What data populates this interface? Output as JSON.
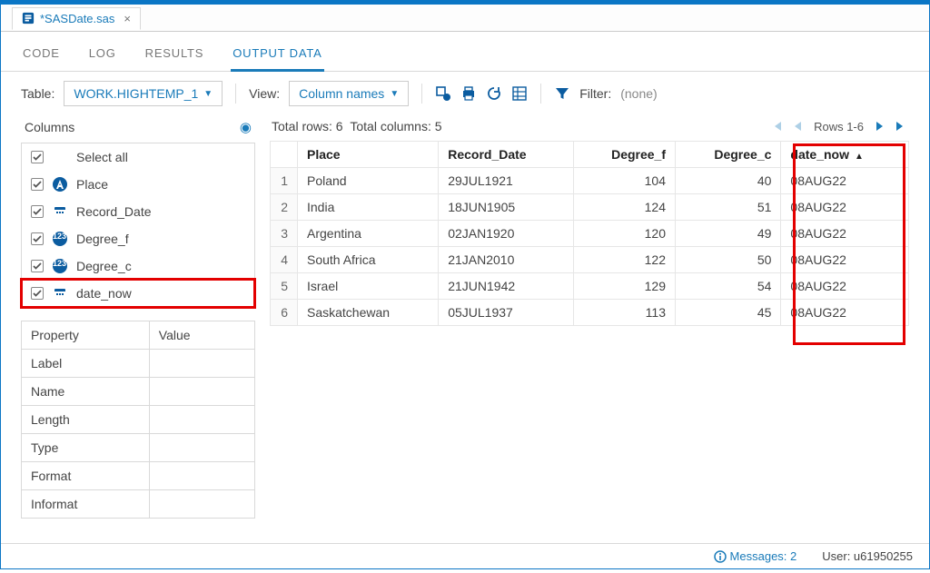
{
  "file_tab": {
    "name": "*SASDate.sas",
    "icon": "sas-program-icon"
  },
  "nav_tabs": [
    {
      "label": "CODE",
      "active": false
    },
    {
      "label": "LOG",
      "active": false
    },
    {
      "label": "RESULTS",
      "active": false
    },
    {
      "label": "OUTPUT DATA",
      "active": true
    }
  ],
  "toolbar": {
    "table_label": "Table:",
    "table_value": "WORK.HIGHTEMP_1",
    "view_label": "View:",
    "view_value": "Column names",
    "filter_label": "Filter:",
    "filter_value": "(none)"
  },
  "columns_panel": {
    "title": "Columns",
    "items": [
      {
        "label": "Select all",
        "icon": "none",
        "checked": true,
        "highlight": false
      },
      {
        "label": "Place",
        "icon": "char",
        "checked": true,
        "highlight": false
      },
      {
        "label": "Record_Date",
        "icon": "date",
        "checked": true,
        "highlight": false
      },
      {
        "label": "Degree_f",
        "icon": "num",
        "checked": true,
        "highlight": false
      },
      {
        "label": "Degree_c",
        "icon": "num",
        "checked": true,
        "highlight": false
      },
      {
        "label": "date_now",
        "icon": "date",
        "checked": true,
        "highlight": true
      }
    ]
  },
  "properties": {
    "headers": [
      "Property",
      "Value"
    ],
    "rows": [
      "Label",
      "Name",
      "Length",
      "Type",
      "Format",
      "Informat"
    ]
  },
  "totals": {
    "rows_label": "Total rows: 6",
    "cols_label": "Total columns: 5"
  },
  "pager": {
    "range": "Rows 1-6"
  },
  "grid": {
    "headers": [
      "Place",
      "Record_Date",
      "Degree_f",
      "Degree_c",
      "date_now"
    ],
    "align": [
      "left",
      "left",
      "right",
      "right",
      "left"
    ],
    "sorted_col": 4,
    "rows": [
      [
        "Poland",
        "29JUL1921",
        "104",
        "40",
        "08AUG22"
      ],
      [
        "India",
        "18JUN1905",
        "124",
        "51",
        "08AUG22"
      ],
      [
        "Argentina",
        "02JAN1920",
        "120",
        "49",
        "08AUG22"
      ],
      [
        "South Africa",
        "21JAN2010",
        "122",
        "50",
        "08AUG22"
      ],
      [
        "Israel",
        "21JUN1942",
        "129",
        "54",
        "08AUG22"
      ],
      [
        "Saskatchewan",
        "05JUL1937",
        "113",
        "45",
        "08AUG22"
      ]
    ]
  },
  "status": {
    "messages_label": "Messages: 2",
    "user_label": "User: u61950255"
  },
  "colors": {
    "accent": "#1a7bb9",
    "highlight_border": "#e30000",
    "icon_fill": "#0b5ca0"
  }
}
